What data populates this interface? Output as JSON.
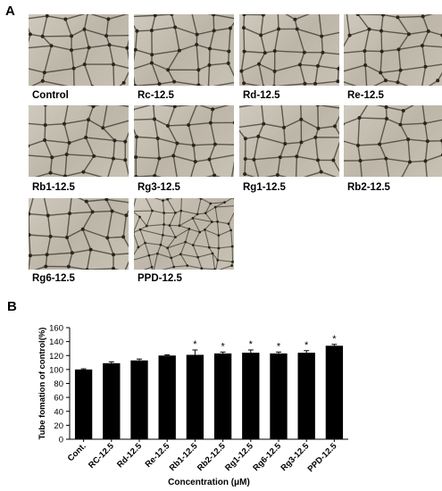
{
  "panels": {
    "a_label": "A",
    "b_label": "B"
  },
  "images": [
    {
      "label": "Control"
    },
    {
      "label": "Rc-12.5"
    },
    {
      "label": "Rd-12.5"
    },
    {
      "label": "Re-12.5"
    },
    {
      "label": "Rb1-12.5"
    },
    {
      "label": "Rg3-12.5"
    },
    {
      "label": "Rg1-12.5"
    },
    {
      "label": "Rb2-12.5"
    },
    {
      "label": "Rg6-12.5"
    },
    {
      "label": "PPD-12.5"
    }
  ],
  "chart_data": {
    "type": "bar",
    "categories": [
      "Cont.",
      "RC-12.5",
      "Rd-12.5",
      "Re-12.5",
      "Rb1-12.5",
      "Rb2-12.5",
      "Rg1-12.5",
      "Rg6-12.5",
      "Rg3-12.5",
      "PPD-12.5"
    ],
    "values": [
      100,
      109,
      113,
      120,
      121,
      123,
      124,
      123,
      124,
      134
    ],
    "errors": [
      1,
      2,
      2,
      1,
      7,
      2,
      4,
      2,
      3,
      2
    ],
    "significance": [
      "",
      "",
      "",
      "",
      "*",
      "*",
      "*",
      "*",
      "*",
      "*"
    ],
    "xlabel": "Concentration (μM)",
    "ylabel": "Tube fomation of control(%)",
    "ylim": [
      0,
      160
    ],
    "yticks": [
      0,
      20,
      40,
      60,
      80,
      100,
      120,
      140,
      160
    ],
    "bar_color": "#000000"
  }
}
